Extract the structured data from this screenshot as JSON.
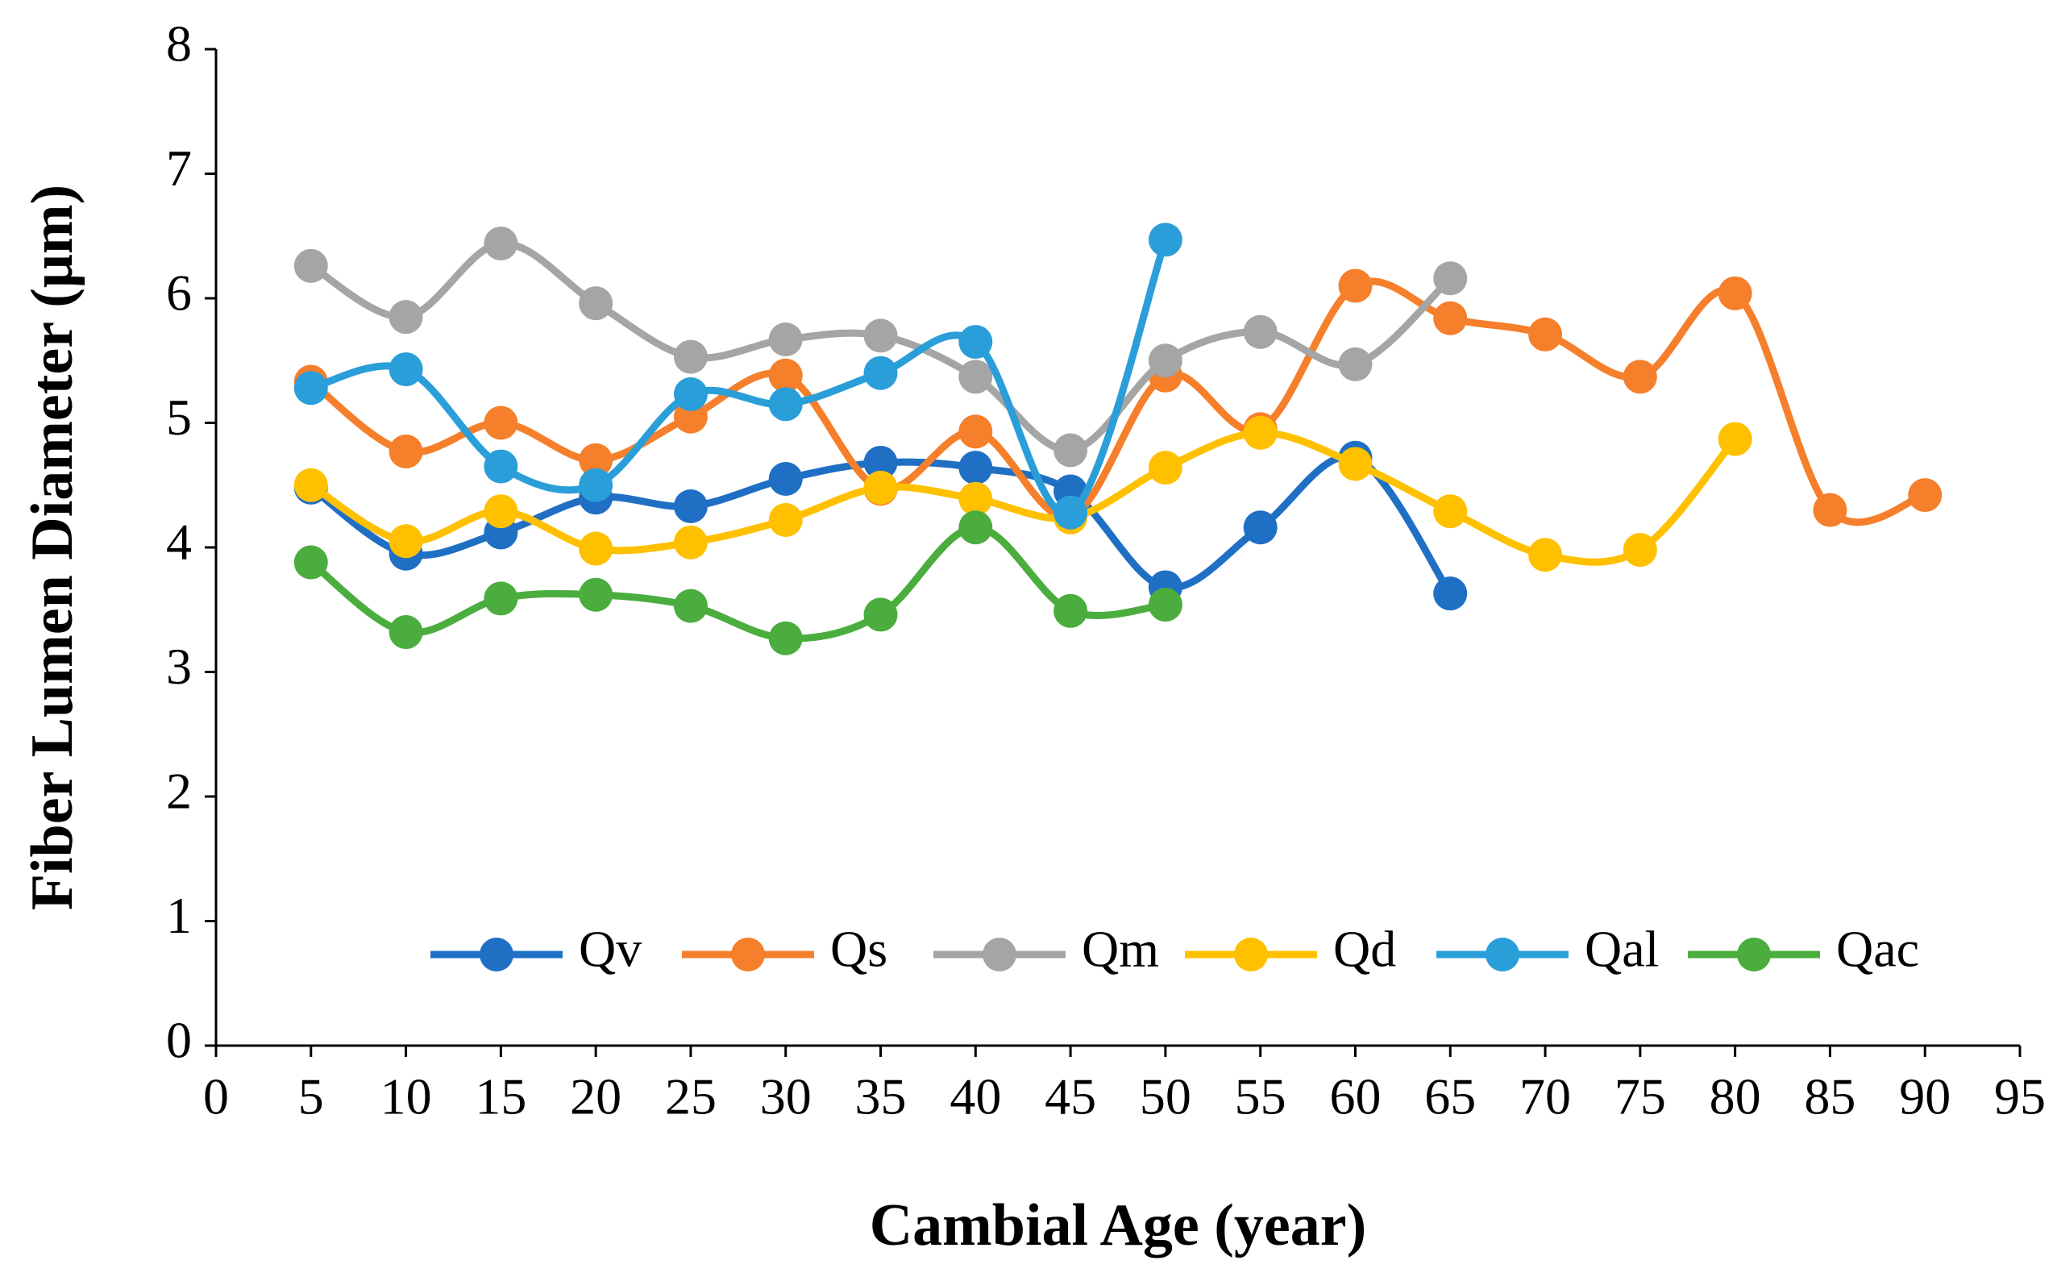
{
  "chart_data": {
    "type": "line",
    "x_label": "Cambial Age (year)",
    "y_label": "Fiber Lumen Diameter (μm)",
    "x": [
      5,
      10,
      15,
      20,
      25,
      30,
      35,
      40,
      45,
      50,
      55,
      60,
      65,
      70,
      75,
      80,
      85,
      90
    ],
    "xlim": [
      0,
      95
    ],
    "xticks": [
      0,
      5,
      10,
      15,
      20,
      25,
      30,
      35,
      40,
      45,
      50,
      55,
      60,
      65,
      70,
      75,
      80,
      85,
      90,
      95
    ],
    "ylim": [
      0,
      8
    ],
    "yticks": [
      0,
      1,
      2,
      3,
      4,
      5,
      6,
      7,
      8
    ],
    "smooth": true,
    "legend": "bottom",
    "series": [
      {
        "name": "Qv",
        "color": "#1f6fc4",
        "values": [
          4.48,
          3.95,
          4.12,
          4.4,
          4.33,
          4.55,
          4.68,
          4.64,
          4.45,
          3.68,
          4.16,
          4.72,
          3.63,
          null,
          null,
          null,
          null,
          null
        ]
      },
      {
        "name": "Qs",
        "color": "#f57f2a",
        "values": [
          5.33,
          4.77,
          5.0,
          4.7,
          5.05,
          5.38,
          4.47,
          4.93,
          4.25,
          5.38,
          4.95,
          6.1,
          5.84,
          5.71,
          5.37,
          6.04,
          4.3,
          4.42
        ]
      },
      {
        "name": "Qm",
        "color": "#a5a5a5",
        "values": [
          6.26,
          5.85,
          6.44,
          5.96,
          5.53,
          5.67,
          5.7,
          5.37,
          4.78,
          5.5,
          5.73,
          5.47,
          6.16,
          null,
          null,
          null,
          null,
          null
        ]
      },
      {
        "name": "Qd",
        "color": "#ffc000",
        "values": [
          4.5,
          4.05,
          4.29,
          3.99,
          4.04,
          4.22,
          4.48,
          4.39,
          4.24,
          4.64,
          4.92,
          4.67,
          4.29,
          3.94,
          3.98,
          4.87,
          null,
          null
        ]
      },
      {
        "name": "Qal",
        "color": "#2a9ed8",
        "values": [
          5.28,
          5.43,
          4.65,
          4.5,
          5.23,
          5.15,
          5.4,
          5.65,
          4.28,
          6.47,
          null,
          null,
          null,
          null,
          null,
          null,
          null,
          null
        ]
      },
      {
        "name": "Qac",
        "color": "#4aad3e",
        "values": [
          3.88,
          3.32,
          3.59,
          3.62,
          3.53,
          3.27,
          3.46,
          4.16,
          3.49,
          3.54,
          null,
          null,
          null,
          null,
          null,
          null,
          null,
          null
        ]
      }
    ]
  }
}
